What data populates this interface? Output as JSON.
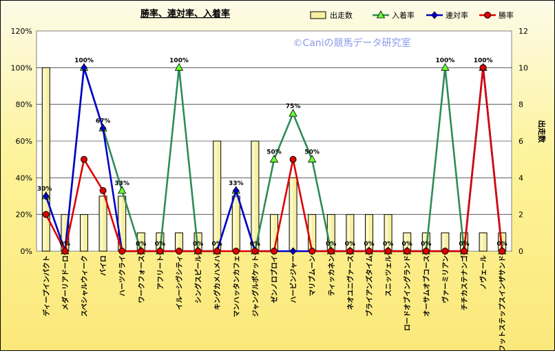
{
  "chart_data": {
    "type": "bar",
    "title": "勝率、連対率、入着率",
    "watermark": "©Caniの競馬データ研究室",
    "ylabel_right": "出走数",
    "ylim_left": [
      0,
      120
    ],
    "ylim_right": [
      0,
      12
    ],
    "yticks_left": [
      "0%",
      "20%",
      "40%",
      "60%",
      "80%",
      "100%",
      "120%"
    ],
    "yticks_right": [
      "0",
      "2",
      "4",
      "6",
      "8",
      "10",
      "12"
    ],
    "grid": true,
    "legend_position": "top-right",
    "categories": [
      "ディープインパクト",
      "メダーリアドーロ",
      "スペシャルウィーク",
      "バイロ",
      "ハーツクライ",
      "ワークフォース",
      "アフリート",
      "イルーシヴシティ",
      "シングスピール",
      "キングカメハメハ",
      "マンハッタンカフェ",
      "ジャングルポケット",
      "ゼンノロブロイ",
      "ハービンジャー",
      "マリブムーン",
      "ティッカネン",
      "ネオユニヴァース",
      "ブライアンズタイム",
      "スニッツェル",
      "ロードオブイングランド",
      "オーサムオブコース",
      "ヴァーミリアン",
      "チチカステナンゴ",
      "ノヴェール",
      "フットステップスインザサンド"
    ],
    "series": [
      {
        "name": "出走数",
        "type": "bar",
        "axis": "right",
        "color": "#f6f0a0",
        "values": [
          10,
          2,
          2,
          3,
          3,
          1,
          1,
          1,
          1,
          6,
          3,
          6,
          2,
          4,
          2,
          2,
          2,
          2,
          2,
          1,
          1,
          1,
          1,
          1,
          1
        ]
      },
      {
        "name": "入着率",
        "type": "line",
        "axis": "left",
        "color": "#2e8b57",
        "marker": "triangle",
        "values": [
          30,
          0,
          100,
          67,
          33,
          0,
          0,
          100,
          0,
          0,
          33,
          0,
          50,
          75,
          50,
          0,
          0,
          0,
          0,
          0,
          0,
          100,
          0,
          100,
          0
        ]
      },
      {
        "name": "連対率",
        "type": "line",
        "axis": "left",
        "color": "#0000cc",
        "marker": "diamond",
        "values": [
          30,
          0,
          100,
          67,
          0,
          0,
          0,
          0,
          0,
          0,
          33,
          0,
          0,
          0,
          0,
          0,
          0,
          0,
          0,
          0,
          0,
          0,
          0,
          100,
          0
        ]
      },
      {
        "name": "勝率",
        "type": "line",
        "axis": "left",
        "color": "#dd0000",
        "marker": "circle",
        "values": [
          20,
          0,
          50,
          33,
          0,
          0,
          0,
          0,
          0,
          0,
          0,
          0,
          0,
          50,
          0,
          0,
          0,
          0,
          0,
          0,
          0,
          0,
          0,
          100,
          0
        ]
      }
    ],
    "data_labels": [
      "30%",
      "0%",
      "100%",
      "67%",
      "33%",
      "0%",
      "0%",
      "100%",
      "0%",
      "0%",
      "33%",
      "0%",
      "50%",
      "75%",
      "50%",
      "0%",
      "0%",
      "0%",
      "0%",
      "0%",
      "0%",
      "100%",
      "0%",
      "100%",
      "0%"
    ]
  }
}
